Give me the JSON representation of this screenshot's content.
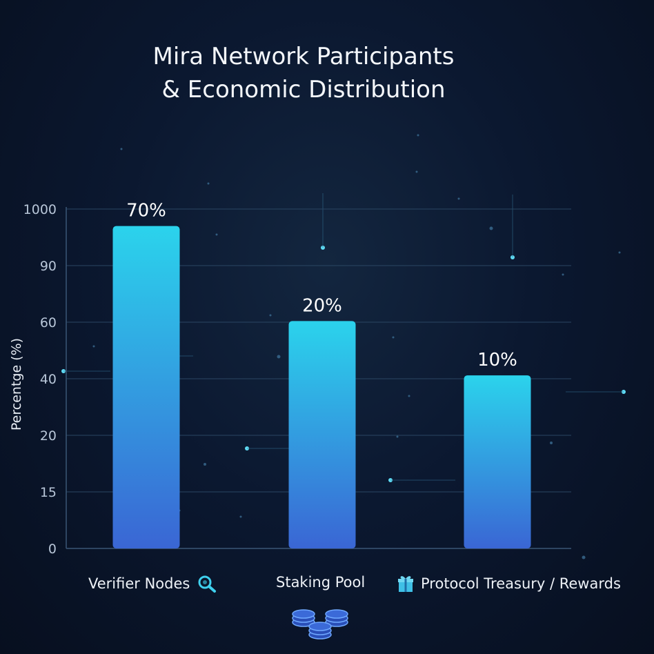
{
  "title_line1": "Mira Network Participants",
  "title_line2": "& Economic Distribution",
  "chart_data": {
    "type": "bar",
    "title": "Mira Network Participants & Economic Distribution",
    "ylabel": "Percentge (%)",
    "xlabel": "",
    "y_ticks": [
      "1000",
      "90",
      "60",
      "40",
      "20",
      "15",
      "0"
    ],
    "categories": [
      "Verifier Nodes",
      "Staking Pool",
      "Protocol Treasury / Rewards"
    ],
    "values": [
      70,
      20,
      10
    ],
    "data_labels": [
      "70%",
      "20%",
      "10%"
    ],
    "bar_fill_fraction": [
      0.95,
      0.67,
      0.51
    ],
    "grid": true,
    "bar_color_top": "#2bd3ec",
    "bar_color_bottom": "#3a66d4"
  },
  "icons": {
    "verifier": "magnifier-icon",
    "staking": "coins-icon",
    "treasury": "gift-icon"
  },
  "colors": {
    "background": "#0b1830",
    "grid": "#2a4663",
    "accent": "#3fd0ee"
  }
}
